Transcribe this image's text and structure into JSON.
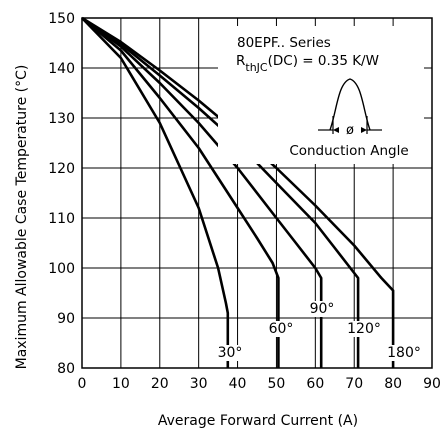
{
  "chart_data": {
    "type": "line",
    "xlabel": "Average Forward Current (A)",
    "ylabel": "Maximum Allowable Case Temperature (°C)",
    "xlim": [
      0,
      90
    ],
    "ylim": [
      80,
      150
    ],
    "x_ticks": [
      "0",
      "10",
      "20",
      "30",
      "40",
      "50",
      "60",
      "70",
      "80",
      "90"
    ],
    "y_ticks": [
      "80",
      "90",
      "100",
      "110",
      "120",
      "130",
      "140",
      "150"
    ],
    "grid": true,
    "annotations": {
      "series_name": "80EPF.. Series",
      "rth_prefix": "R",
      "rth_sub": "thJC",
      "rth_suffix": "(DC) = 0.35 K/W",
      "phi": "ø",
      "conduction_angle": "Conduction Angle"
    },
    "series": [
      {
        "name": "30°",
        "points": [
          [
            0,
            150
          ],
          [
            10,
            142
          ],
          [
            20,
            129
          ],
          [
            30,
            112
          ],
          [
            35,
            100
          ],
          [
            37,
            93
          ],
          [
            37.5,
            91
          ],
          [
            37.5,
            80
          ]
        ]
      },
      {
        "name": "60°",
        "points": [
          [
            0,
            150
          ],
          [
            10,
            143.5
          ],
          [
            20,
            134
          ],
          [
            30,
            124
          ],
          [
            40,
            112
          ],
          [
            45,
            106
          ],
          [
            49,
            101
          ],
          [
            50.5,
            98
          ],
          [
            50.5,
            80
          ]
        ]
      },
      {
        "name": "90°",
        "points": [
          [
            0,
            150
          ],
          [
            10,
            144.3
          ],
          [
            20,
            137
          ],
          [
            30,
            129
          ],
          [
            40,
            120
          ],
          [
            50,
            110
          ],
          [
            55,
            105
          ],
          [
            60,
            100
          ],
          [
            61.5,
            98
          ],
          [
            61.5,
            80
          ]
        ]
      },
      {
        "name": "120°",
        "points": [
          [
            0,
            150
          ],
          [
            10,
            144.8
          ],
          [
            20,
            138.5
          ],
          [
            30,
            132
          ],
          [
            40,
            125
          ],
          [
            50,
            117
          ],
          [
            60,
            109
          ],
          [
            65,
            104
          ],
          [
            70,
            99
          ],
          [
            71,
            98
          ],
          [
            71,
            80
          ]
        ]
      },
      {
        "name": "180°",
        "points": [
          [
            0,
            150
          ],
          [
            10,
            145.2
          ],
          [
            20,
            139.5
          ],
          [
            30,
            133.5
          ],
          [
            40,
            127
          ],
          [
            50,
            120
          ],
          [
            60,
            112.5
          ],
          [
            70,
            104.5
          ],
          [
            77,
            98
          ],
          [
            80,
            95.5
          ],
          [
            80,
            80
          ]
        ]
      }
    ]
  }
}
